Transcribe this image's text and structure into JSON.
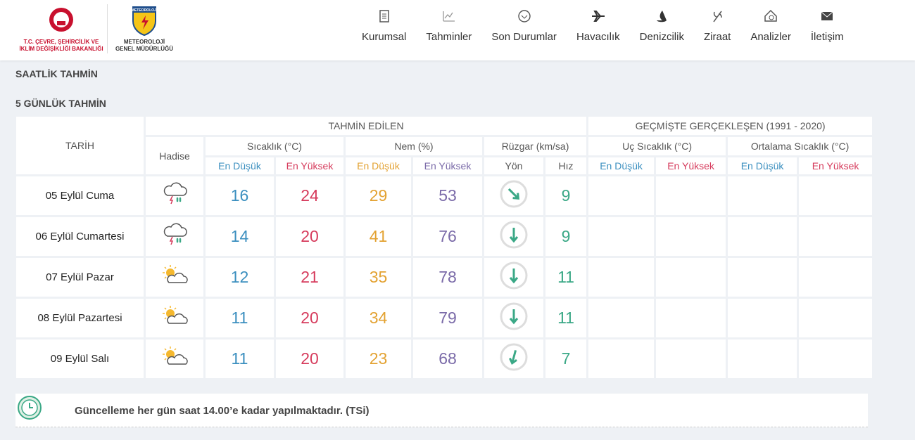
{
  "header": {
    "ministry": [
      "T.C. ÇEVRE, ŞEHİRCİLİK VE",
      "İKLİM DEĞİŞİKLİĞİ BAKANLIĞI"
    ],
    "mgm_badge": "METEOROLOJİ",
    "mgm": [
      "METEOROLOJİ",
      "GENEL MÜDÜRLÜĞÜ"
    ],
    "nav": [
      "Kurumsal",
      "Tahminler",
      "Son Durumlar",
      "Havacılık",
      "Denizcilik",
      "Ziraat",
      "Analizler",
      "İletişim"
    ]
  },
  "sections": [
    "SAATLİK TAHMİN",
    "5 GÜNLÜK TAHMİN"
  ],
  "table": {
    "date_header": "TARİH",
    "forecast_header": "TAHMİN EDİLEN",
    "history_header": "GEÇMİŞTE GERÇEKLEŞEN (1991 - 2020)",
    "event_header": "Hadise",
    "groups": [
      "Sıcaklık (°C)",
      "Nem (%)",
      "Rüzgar (km/sa)",
      "Uç Sıcaklık (°C)",
      "Ortalama Sıcaklık (°C)"
    ],
    "subheaders": [
      "En Düşük",
      "En Yüksek",
      "En Düşük",
      "En Yüksek",
      "Yön",
      "Hız",
      "En Düşük",
      "En Yüksek",
      "En Düşük",
      "En Yüksek"
    ],
    "rows": [
      [
        "05 Eylül Cuma",
        16,
        24,
        29,
        53,
        9
      ],
      [
        "06 Eylül Cumartesi",
        14,
        20,
        41,
        76,
        9
      ],
      [
        "07 Eylül Pazar",
        12,
        21,
        35,
        78,
        11
      ],
      [
        "08 Eylül Pazartesi",
        11,
        20,
        34,
        79,
        11
      ],
      [
        "09 Eylül Salı",
        11,
        20,
        23,
        68,
        7
      ]
    ]
  },
  "footer": "Güncelleme her gün saat 14.00’e kadar yapılmaktadır. (TSi)"
}
